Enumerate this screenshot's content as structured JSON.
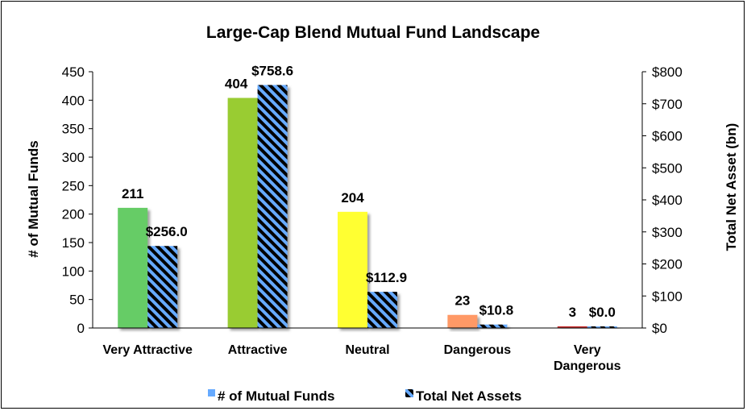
{
  "chart_data": {
    "type": "bar",
    "title": "Large-Cap Blend Mutual Fund Landscape",
    "categories": [
      [
        "Very Attractive"
      ],
      [
        "Attractive"
      ],
      [
        "Neutral"
      ],
      [
        "Dangerous"
      ],
      [
        "Very",
        "Dangerous"
      ]
    ],
    "series": [
      {
        "name": "# of Mutual Funds",
        "axis": "left",
        "values": [
          211,
          404,
          204,
          23,
          3
        ],
        "labels": [
          "211",
          "404",
          "204",
          "23",
          "3"
        ],
        "colors": [
          "#66cc66",
          "#99cc33",
          "#ffff33",
          "#ff9966",
          "#cc3333"
        ]
      },
      {
        "name": "Total Net Assets",
        "axis": "right",
        "values": [
          256.0,
          758.6,
          112.9,
          10.8,
          0.0
        ],
        "labels": [
          "$256.0",
          "$758.6",
          "$112.9",
          "$10.8",
          "$0.0"
        ],
        "fill": "#66aaff",
        "stripe": "#000000"
      }
    ],
    "ylabel_left": "# of Mutual Funds",
    "ylabel_right": "Total Net Asset (bn)",
    "ylim_left": [
      0,
      450
    ],
    "yticks_left": [
      "0",
      "50",
      "100",
      "150",
      "200",
      "250",
      "300",
      "350",
      "400",
      "450"
    ],
    "ylim_right": [
      0,
      800
    ],
    "yticks_right": [
      "$0",
      "$100",
      "$200",
      "$300",
      "$400",
      "$500",
      "$600",
      "$700",
      "$800"
    ],
    "legend_position": "bottom",
    "grid": false
  }
}
